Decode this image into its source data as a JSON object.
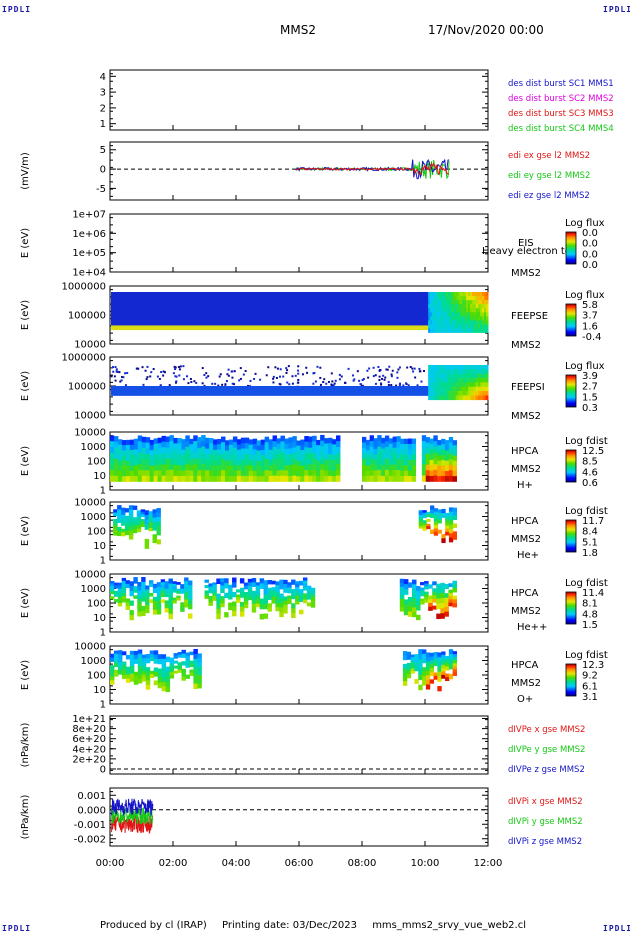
{
  "header": {
    "corner_logo": "IPDLI",
    "title": "MMS2",
    "date": "17/Nov/2020 00:00"
  },
  "footer": {
    "produced_by": "Produced by cl (IRAP)",
    "printing_date": "Printing date: 03/Dec/2023",
    "file_name": "mms_mms2_srvy_vue_web2.cl"
  },
  "colors": {
    "mms1": "#1414c8",
    "mms2": "#e000e0",
    "mms3": "#e01414",
    "mms4": "#14c814",
    "x_component": "#e01414",
    "y_component": "#14c814",
    "z_component": "#1414c8"
  },
  "chart_data": [
    {
      "type": "line",
      "panel": "des-dist-burst",
      "ylabel": "",
      "y_ticks": [
        "4",
        "3",
        "2",
        "1"
      ],
      "ylim": [
        0.6,
        4.4
      ],
      "legend": [
        {
          "text": "des dist burst SC1 MMS1",
          "color_key": "mms1"
        },
        {
          "text": "des dist burst SC2 MMS2",
          "color_key": "mms2"
        },
        {
          "text": "des dist burst SC3 MMS3",
          "color_key": "mms3"
        },
        {
          "text": "des dist burst SC4 MMS4",
          "color_key": "mms4"
        }
      ]
    },
    {
      "type": "line",
      "panel": "edi-electric-field",
      "ylabel": "(mV/m)",
      "y_ticks": [
        "5",
        "0",
        "-5"
      ],
      "ylim": [
        -8,
        7
      ],
      "legend": [
        {
          "text": "edi ex gse l2 MMS2",
          "color_key": "x_component"
        },
        {
          "text": "edi ey gse l2 MMS2",
          "color_key": "y_component"
        },
        {
          "text": "edi ez gse l2 MMS2",
          "color_key": "z_component"
        }
      ]
    },
    {
      "type": "heatmap",
      "panel": "eis",
      "ylabel": "E (eV)",
      "y_ticks": [
        "1e+07",
        "1e+06",
        "1e+05",
        "1e+04"
      ],
      "labels": [
        "EIS",
        "Heavy electron tof",
        "MMS2"
      ],
      "colorbar_title": "Log flux",
      "colorbar_ticks": [
        "0.0",
        "0.0",
        "0.0",
        "0.0"
      ]
    },
    {
      "type": "heatmap",
      "panel": "feeps-electrons",
      "ylabel": "E (eV)",
      "y_ticks": [
        "1000000",
        "100000",
        "10000"
      ],
      "labels": [
        "FEEPSE",
        "MMS2"
      ],
      "colorbar_title": "Log flux",
      "colorbar_ticks": [
        "5.8",
        "3.7",
        "1.6",
        "-0.4"
      ]
    },
    {
      "type": "heatmap",
      "panel": "feeps-ions",
      "ylabel": "E (eV)",
      "y_ticks": [
        "1000000",
        "100000",
        "10000"
      ],
      "labels": [
        "FEEPSI",
        "MMS2"
      ],
      "colorbar_title": "Log flux",
      "colorbar_ticks": [
        "3.9",
        "2.7",
        "1.5",
        "0.3"
      ]
    },
    {
      "type": "heatmap",
      "panel": "hpca-h",
      "ylabel": "E (eV)",
      "y_ticks": [
        "10000",
        "1000",
        "100",
        "10",
        "1"
      ],
      "labels": [
        "HPCA",
        "MMS2",
        "H+"
      ],
      "colorbar_title": "Log fdist",
      "colorbar_ticks": [
        "12.5",
        "8.5",
        "4.6",
        "0.6"
      ]
    },
    {
      "type": "heatmap",
      "panel": "hpca-he1",
      "ylabel": "E (eV)",
      "y_ticks": [
        "10000",
        "1000",
        "100",
        "10",
        "1"
      ],
      "labels": [
        "HPCA",
        "MMS2",
        "He+"
      ],
      "colorbar_title": "Log fdist",
      "colorbar_ticks": [
        "11.7",
        "8.4",
        "5.1",
        "1.8"
      ]
    },
    {
      "type": "heatmap",
      "panel": "hpca-he2",
      "ylabel": "E (eV)",
      "y_ticks": [
        "10000",
        "1000",
        "100",
        "10",
        "1"
      ],
      "labels": [
        "HPCA",
        "MMS2",
        "He++"
      ],
      "colorbar_title": "Log fdist",
      "colorbar_ticks": [
        "11.4",
        "8.1",
        "4.8",
        "1.5"
      ]
    },
    {
      "type": "heatmap",
      "panel": "hpca-o",
      "ylabel": "E (eV)",
      "y_ticks": [
        "10000",
        "1000",
        "100",
        "10",
        "1"
      ],
      "labels": [
        "HPCA",
        "MMS2",
        "O+"
      ],
      "colorbar_title": "Log fdist",
      "colorbar_ticks": [
        "12.3",
        "9.2",
        "6.1",
        "3.1"
      ]
    },
    {
      "type": "line",
      "panel": "divpe",
      "ylabel": "(nPa/km)",
      "y_ticks": [
        "1e+21",
        "8e+20",
        "6e+20",
        "4e+20",
        "2e+20",
        "0"
      ],
      "ylim": [
        -1e+20,
        1.05e+21
      ],
      "legend": [
        {
          "text": "dIVPe x gse MMS2",
          "color_key": "x_component"
        },
        {
          "text": "dIVPe y gse MMS2",
          "color_key": "y_component"
        },
        {
          "text": "dIVPe z gse MMS2",
          "color_key": "z_component"
        }
      ]
    },
    {
      "type": "line",
      "panel": "divpi",
      "ylabel": "(nPa/km)",
      "y_ticks": [
        "0.001",
        "0.000",
        "-0.001",
        "-0.002"
      ],
      "ylim": [
        -0.0025,
        0.0015
      ],
      "legend": [
        {
          "text": "dIVPi x gse MMS2",
          "color_key": "x_component"
        },
        {
          "text": "dIVPi y gse MMS2",
          "color_key": "y_component"
        },
        {
          "text": "dIVPi z gse MMS2",
          "color_key": "z_component"
        }
      ]
    }
  ],
  "x_axis": {
    "ticks": [
      "00:00",
      "02:00",
      "04:00",
      "06:00",
      "08:00",
      "10:00",
      "12:00"
    ],
    "range_hours": [
      0,
      12
    ]
  }
}
